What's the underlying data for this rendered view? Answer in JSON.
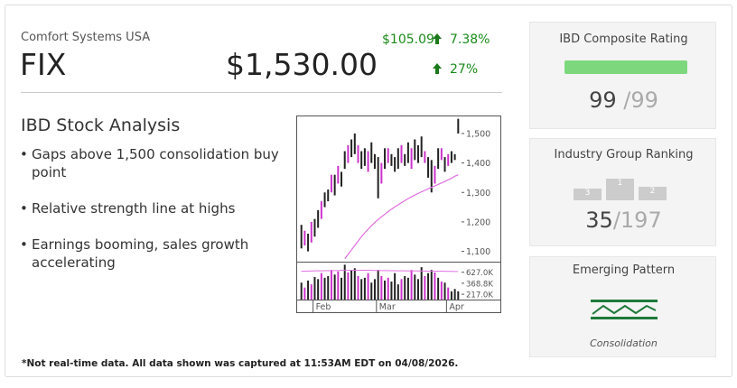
{
  "header": {
    "company": "Comfort Systems USA",
    "ticker": "FIX",
    "price": "$1,530.00",
    "change": "$105.09",
    "change_pct": "7.38%",
    "ytd_pct": "27%"
  },
  "analysis": {
    "title": "IBD Stock Analysis",
    "bullets": [
      "Gaps above 1,500 consolidation buy point",
      "Relative strength line at highs",
      "Earnings booming, sales growth accelerating"
    ]
  },
  "chart_data": {
    "type": "hilo",
    "lows": [
      1110,
      1120,
      1100,
      1130,
      1150,
      1180,
      1210,
      1250,
      1270,
      1300,
      1290,
      1330,
      1320,
      1380,
      1400,
      1420,
      1430,
      1400,
      1380,
      1390,
      1370,
      1400,
      1380,
      1280,
      1330,
      1380,
      1400,
      1390,
      1370,
      1380,
      1400,
      1390,
      1400,
      1380,
      1410,
      1400,
      1420,
      1400,
      1350,
      1300,
      1330,
      1380,
      1410,
      1370,
      1390,
      1400,
      1410,
      1500
    ],
    "highs": [
      1190,
      1170,
      1160,
      1200,
      1210,
      1240,
      1270,
      1300,
      1310,
      1360,
      1360,
      1390,
      1370,
      1440,
      1460,
      1480,
      1500,
      1460,
      1440,
      1450,
      1440,
      1470,
      1430,
      1420,
      1400,
      1450,
      1450,
      1430,
      1420,
      1450,
      1460,
      1430,
      1470,
      1450,
      1480,
      1460,
      1490,
      1440,
      1420,
      1410,
      1390,
      1450,
      1450,
      1420,
      1430,
      1440,
      1430,
      1550
    ],
    "colors": [
      "#222",
      "#cc33cc",
      "#222",
      "#cc33cc",
      "#222",
      "#222",
      "#cc33cc",
      "#222",
      "#222",
      "#cc33cc",
      "#222",
      "#cc33cc",
      "#222",
      "#222",
      "#cc33cc",
      "#222",
      "#222",
      "#cc33cc",
      "#222",
      "#222",
      "#cc33cc",
      "#222",
      "#222",
      "#222",
      "#cc33cc",
      "#222",
      "#cc33cc",
      "#222",
      "#222",
      "#222",
      "#cc33cc",
      "#222",
      "#222",
      "#cc33cc",
      "#222",
      "#222",
      "#222",
      "#cc33cc",
      "#222",
      "#222",
      "#cc33cc",
      "#222",
      "#cc33cc",
      "#222",
      "#cc33cc",
      "#222",
      "#222",
      "#222"
    ],
    "moving_average": [
      null,
      null,
      null,
      null,
      null,
      null,
      null,
      null,
      null,
      null,
      null,
      null,
      null,
      1075,
      1090,
      1105,
      1120,
      1135,
      1150,
      1163,
      1175,
      1187,
      1198,
      1208,
      1217,
      1226,
      1235,
      1243,
      1251,
      1258,
      1265,
      1272,
      1279,
      1285,
      1291,
      1297,
      1302,
      1307,
      1312,
      1317,
      1322,
      1327,
      1332,
      1337,
      1343,
      1348,
      1355,
      1360
    ],
    "ma_color": "#e070e0",
    "xlim": [
      -1,
      48
    ],
    "xticks": [
      {
        "value": 3.5,
        "label": "Feb"
      },
      {
        "value": 22.5,
        "label": "Mar"
      },
      {
        "value": 43.5,
        "label": "Apr"
      }
    ],
    "ylim": [
      1065,
      1555
    ],
    "yticks": [
      {
        "value": 1500,
        "label": "1,500"
      },
      {
        "value": 1400,
        "label": "1,400"
      },
      {
        "value": 1300,
        "label": "1,300"
      },
      {
        "value": 1200,
        "label": "1,200"
      },
      {
        "value": 1100,
        "label": "1,100"
      }
    ],
    "volume": {
      "values": [
        380000,
        300000,
        420000,
        350000,
        500000,
        450000,
        600000,
        480000,
        520000,
        700000,
        560000,
        650000,
        480000,
        900000,
        620000,
        700000,
        760000,
        520000,
        450000,
        480000,
        600000,
        380000,
        450000,
        700000,
        520000,
        420000,
        480000,
        400000,
        600000,
        350000,
        450000,
        520000,
        480000,
        700000,
        560000,
        450000,
        800000,
        520000,
        600000,
        700000,
        620000,
        480000,
        400000,
        380000,
        300000,
        250000,
        280000,
        250000
      ],
      "average": [
        660000,
        660000,
        665000,
        665000,
        670000,
        670000,
        670000,
        675000,
        675000,
        680000,
        680000,
        680000,
        685000,
        685000,
        685000,
        690000,
        690000,
        690000,
        690000,
        690000,
        688000,
        686000,
        684000,
        682000,
        680000,
        680000,
        678000,
        676000,
        674000,
        672000,
        670000,
        670000,
        668000,
        668000,
        666000,
        666000,
        664000,
        664000,
        662000,
        662000,
        660000,
        660000,
        658000,
        656000,
        654000,
        652000,
        650000,
        648000
      ],
      "log_scale": true,
      "ylim": [
        168000,
        998000
      ],
      "yticks": [
        {
          "value": 627000,
          "label": "627.0K"
        },
        {
          "value": 368800,
          "label": "368.8K"
        },
        {
          "value": 217000,
          "label": "217.0K"
        }
      ]
    }
  },
  "ratings": {
    "composite": {
      "label": "IBD Composite Rating",
      "value": "99",
      "max": "/99"
    },
    "group": {
      "label": "Industry Group Ranking",
      "podium": [
        "1",
        "3",
        "2"
      ],
      "value": "35",
      "max": "/197"
    },
    "pattern": {
      "label": "Emerging Pattern",
      "name": "Consolidation"
    }
  },
  "footer": "*Not real-time data. All data shown was captured at 11:53AM EDT on 04/08/2026."
}
